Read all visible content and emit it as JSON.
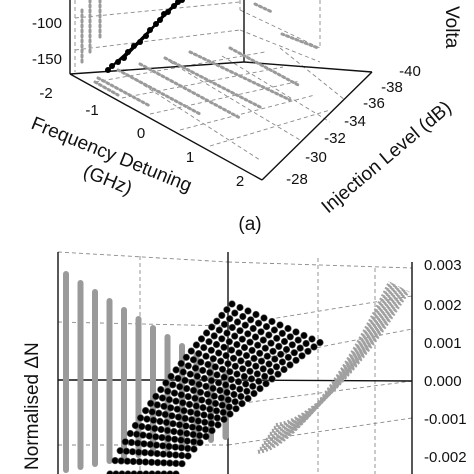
{
  "chart_data": [
    {
      "type": "scatter",
      "subtype": "3d-line",
      "panel_label": "(a)",
      "xlabel": "Frequency Detuning\n(GHz)",
      "ylabel": "Injection Level (dB)",
      "zlabel": "Volta",
      "x_ticks": [
        "-2",
        "-1",
        "0",
        "1",
        "2"
      ],
      "y_ticks": [
        "-28",
        "-30",
        "-32",
        "-34",
        "-36",
        "-38",
        "-40"
      ],
      "z_ticks": [
        "-100",
        "-150"
      ],
      "grid": true,
      "series": [
        {
          "color": "#000000",
          "style": "line+markers",
          "curves": 4
        },
        {
          "color": "#9a9a9a",
          "style": "markers",
          "projection": "floor/walls"
        }
      ]
    },
    {
      "type": "scatter",
      "subtype": "3d-surface-markers",
      "zlabel": "Normalised ΔN",
      "z_ticks": [
        "0.003",
        "0.002",
        "0.001",
        "0.000",
        "-0.001",
        "-0.002"
      ],
      "grid": true,
      "series": [
        {
          "color": "#000000",
          "style": "markers",
          "curves": 12
        },
        {
          "color": "#9a9a9a",
          "style": "markers",
          "projection": "walls"
        }
      ]
    }
  ]
}
